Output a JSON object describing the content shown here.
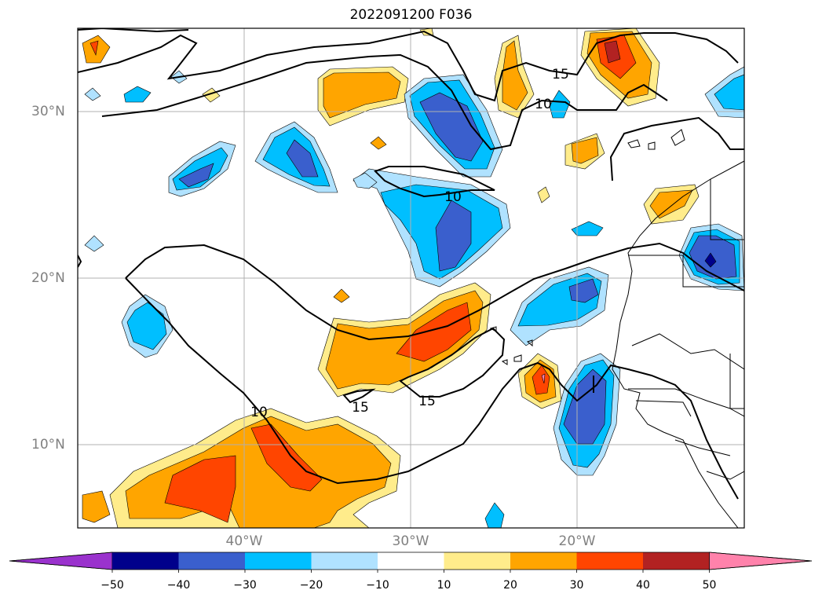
{
  "title": "2022091200 F036",
  "lat_labels": [
    "30°N",
    "20°N",
    "10°N"
  ],
  "lon_labels": [
    "40°W",
    "30°W",
    "20°W"
  ],
  "contour_labels": [
    "15",
    "10",
    "10",
    "10",
    "15",
    "15"
  ],
  "colorbar": {
    "ticks": [
      "−50",
      "−40",
      "−30",
      "−20",
      "−10",
      "10",
      "20",
      "30",
      "40",
      "50"
    ],
    "colors": [
      "#9a32cd",
      "#00008b",
      "#3a5fcd",
      "#00bfff",
      "#b0e2ff",
      "#ffffff",
      "#ffec8b",
      "#ffa500",
      "#ff4500",
      "#b22222",
      "#ff82ab"
    ],
    "extend": "both"
  },
  "colors": {
    "neg_50": "#00008b",
    "neg_40": "#3a5fcd",
    "neg_30": "#00bfff",
    "neg_20": "#b0e2ff",
    "pos_10": "#ffec8b",
    "pos_20": "#ffa500",
    "pos_30": "#ff4500",
    "pos_40": "#b22222",
    "pos_50": "#ff82ab",
    "grid": "#b0b0b0",
    "label_gray": "#808080"
  }
}
